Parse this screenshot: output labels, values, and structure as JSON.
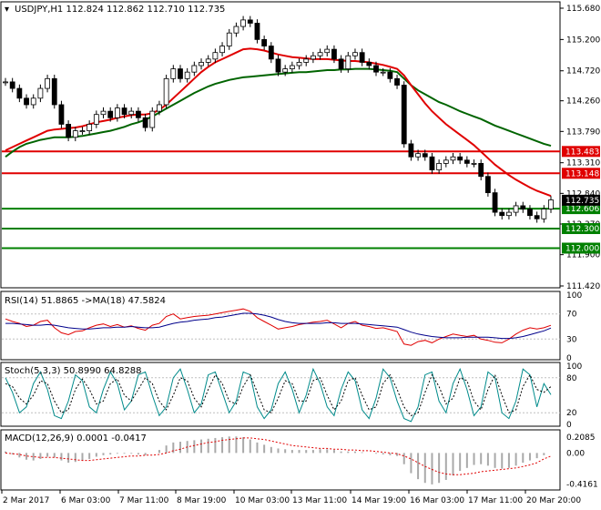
{
  "chart_data": [
    {
      "type": "candlestick",
      "panel": "price",
      "title": "USDJPY,H1  112.824 112.862 112.710 112.735",
      "symbol": "USDJPY",
      "timeframe": "H1",
      "ohlc_label": {
        "open": 112.824,
        "high": 112.862,
        "low": 112.71,
        "close": 112.735
      },
      "y_ticks": [
        "115.680",
        "115.200",
        "114.720",
        "114.260",
        "113.790",
        "113.310",
        "112.840",
        "112.370",
        "111.900",
        "111.420"
      ],
      "ylim": [
        111.42,
        115.75
      ],
      "horizontal_levels": [
        {
          "value": 113.483,
          "label": "113.483",
          "color": "#e00000"
        },
        {
          "value": 113.148,
          "label": "113.148",
          "color": "#e00000"
        },
        {
          "value": 112.606,
          "label": "112.606",
          "color": "#008000"
        },
        {
          "value": 112.3,
          "label": "112.300",
          "color": "#008000"
        },
        {
          "value": 112.0,
          "label": "112.000",
          "color": "#008000"
        }
      ],
      "current_price": {
        "value": 112.735,
        "label": "112.735"
      },
      "x_ticks": [
        "2 Mar 2017",
        "6 Mar 03:00",
        "7 Mar 11:00",
        "8 Mar 19:00",
        "10 Mar 03:00",
        "13 Mar 11:00",
        "14 Mar 19:00",
        "16 Mar 03:00",
        "17 Mar 11:00",
        "20 Mar 20:00"
      ],
      "series": [
        {
          "key": "price",
          "kind": "candles",
          "color": "#000000",
          "values": [
            114.55,
            114.45,
            114.3,
            114.2,
            114.3,
            114.45,
            114.6,
            114.2,
            113.9,
            113.7,
            113.8,
            113.8,
            113.9,
            114.05,
            114.1,
            114.0,
            114.15,
            114.05,
            114.1,
            114.0,
            113.85,
            114.1,
            114.2,
            114.6,
            114.75,
            114.6,
            114.7,
            114.8,
            114.85,
            114.9,
            115.0,
            115.1,
            115.3,
            115.4,
            115.5,
            115.45,
            115.2,
            115.1,
            114.9,
            114.7,
            114.75,
            114.8,
            114.85,
            114.9,
            114.95,
            115.0,
            115.05,
            114.9,
            114.75,
            114.95,
            115.0,
            114.85,
            114.8,
            114.7,
            114.7,
            114.6,
            114.5,
            113.6,
            113.4,
            113.45,
            113.4,
            113.2,
            113.3,
            113.35,
            113.4,
            113.35,
            113.3,
            113.3,
            113.1,
            112.85,
            112.55,
            112.5,
            112.55,
            112.65,
            112.6,
            112.5,
            112.45,
            112.6,
            112.74
          ]
        },
        {
          "key": "ma_slow",
          "kind": "line",
          "color": "#006400",
          "values": [
            113.4,
            113.48,
            113.55,
            113.6,
            113.63,
            113.66,
            113.68,
            113.7,
            113.7,
            113.7,
            113.71,
            113.72,
            113.74,
            113.76,
            113.78,
            113.8,
            113.83,
            113.86,
            113.9,
            113.93,
            113.97,
            114.02,
            114.08,
            114.14,
            114.2,
            114.26,
            114.32,
            114.38,
            114.43,
            114.48,
            114.52,
            114.55,
            114.58,
            114.6,
            114.62,
            114.63,
            114.64,
            114.65,
            114.66,
            114.67,
            114.68,
            114.69,
            114.7,
            114.7,
            114.71,
            114.72,
            114.73,
            114.73,
            114.74,
            114.74,
            114.75,
            114.75,
            114.75,
            114.74,
            114.73,
            114.72,
            114.7,
            114.6,
            114.5,
            114.42,
            114.36,
            114.3,
            114.24,
            114.2,
            114.15,
            114.1,
            114.06,
            114.02,
            113.98,
            113.93,
            113.88,
            113.84,
            113.8,
            113.76,
            113.72,
            113.68,
            113.64,
            113.6,
            113.57
          ]
        },
        {
          "key": "ma_mid",
          "kind": "line",
          "color": "#e00000",
          "values": [
            113.5,
            113.55,
            113.6,
            113.65,
            113.7,
            113.75,
            113.8,
            113.82,
            113.83,
            113.84,
            113.85,
            113.87,
            113.9,
            113.93,
            113.95,
            113.97,
            114.0,
            114.02,
            114.04,
            114.05,
            114.05,
            114.07,
            114.12,
            114.2,
            114.3,
            114.4,
            114.5,
            114.6,
            114.7,
            114.78,
            114.85,
            114.9,
            114.95,
            115.0,
            115.05,
            115.06,
            115.05,
            115.03,
            115.0,
            114.97,
            114.95,
            114.93,
            114.92,
            114.91,
            114.9,
            114.9,
            114.9,
            114.89,
            114.88,
            114.87,
            114.87,
            114.86,
            114.85,
            114.83,
            114.81,
            114.78,
            114.75,
            114.65,
            114.5,
            114.36,
            114.22,
            114.1,
            114.0,
            113.9,
            113.82,
            113.74,
            113.66,
            113.58,
            113.48,
            113.38,
            113.28,
            113.2,
            113.12,
            113.05,
            112.99,
            112.93,
            112.88,
            112.84,
            112.8
          ]
        }
      ]
    },
    {
      "type": "line",
      "panel": "rsi",
      "title": "RSI(14) 51.8865  ->MA(18) 47.5824",
      "y_ticks": [
        "100",
        "70",
        "30",
        "0"
      ],
      "ylim": [
        0,
        100
      ],
      "series": [
        {
          "key": "rsi",
          "kind": "line",
          "color": "#e00000",
          "values": [
            62,
            58,
            55,
            50,
            52,
            58,
            60,
            48,
            40,
            37,
            42,
            43,
            48,
            52,
            54,
            50,
            53,
            49,
            51,
            47,
            44,
            52,
            55,
            66,
            70,
            62,
            64,
            66,
            67,
            68,
            70,
            72,
            74,
            76,
            78,
            74,
            64,
            58,
            52,
            46,
            48,
            50,
            53,
            55,
            57,
            58,
            60,
            54,
            48,
            55,
            58,
            52,
            50,
            47,
            48,
            45,
            42,
            22,
            20,
            26,
            28,
            24,
            30,
            34,
            38,
            36,
            34,
            36,
            30,
            28,
            25,
            24,
            30,
            38,
            44,
            48,
            46,
            48,
            51.9
          ]
        },
        {
          "key": "rsi_ma",
          "kind": "line",
          "color": "#00008b",
          "values": [
            55,
            55,
            54,
            53,
            52,
            52,
            53,
            52,
            50,
            48,
            47,
            46,
            46,
            47,
            48,
            48,
            49,
            49,
            50,
            49,
            48,
            48,
            49,
            52,
            55,
            57,
            58,
            60,
            61,
            62,
            64,
            65,
            67,
            69,
            71,
            71,
            70,
            68,
            65,
            61,
            58,
            56,
            55,
            55,
            55,
            55,
            56,
            56,
            55,
            55,
            55,
            54,
            53,
            52,
            51,
            50,
            49,
            45,
            41,
            38,
            36,
            34,
            33,
            32,
            32,
            32,
            33,
            33,
            33,
            33,
            32,
            31,
            31,
            32,
            34,
            37,
            40,
            43,
            47.6
          ]
        }
      ]
    },
    {
      "type": "line",
      "panel": "stoch",
      "title": "Stoch(5,3,3) 50.8990 64.8288",
      "y_ticks": [
        "100",
        "80",
        "20",
        "0"
      ],
      "ylim": [
        0,
        100
      ],
      "series": [
        {
          "key": "stoch_k",
          "kind": "line",
          "color": "#008b8b",
          "values": [
            80,
            55,
            20,
            30,
            70,
            90,
            60,
            15,
            10,
            40,
            85,
            75,
            30,
            20,
            60,
            90,
            70,
            25,
            40,
            85,
            90,
            50,
            15,
            30,
            80,
            95,
            60,
            20,
            35,
            85,
            90,
            55,
            20,
            40,
            90,
            85,
            30,
            10,
            25,
            70,
            90,
            60,
            20,
            50,
            95,
            70,
            30,
            15,
            60,
            90,
            75,
            25,
            10,
            45,
            95,
            80,
            40,
            10,
            5,
            30,
            85,
            90,
            40,
            20,
            70,
            95,
            60,
            15,
            30,
            90,
            80,
            20,
            10,
            40,
            95,
            85,
            30,
            70,
            50.9
          ]
        },
        {
          "key": "stoch_d",
          "kind": "line",
          "color": "#000000",
          "values": [
            70,
            65,
            45,
            35,
            50,
            75,
            70,
            40,
            20,
            25,
            60,
            78,
            60,
            35,
            40,
            70,
            78,
            50,
            40,
            60,
            80,
            70,
            40,
            25,
            50,
            80,
            75,
            45,
            30,
            60,
            85,
            70,
            40,
            35,
            65,
            85,
            55,
            25,
            20,
            45,
            75,
            70,
            40,
            40,
            75,
            80,
            50,
            25,
            40,
            75,
            80,
            50,
            25,
            30,
            70,
            85,
            60,
            30,
            15,
            20,
            55,
            85,
            65,
            35,
            45,
            80,
            75,
            40,
            25,
            60,
            85,
            50,
            20,
            25,
            65,
            85,
            60,
            55,
            64.8
          ]
        }
      ]
    },
    {
      "type": "bar",
      "panel": "macd",
      "title": "MACD(12,26,9) 0.0001 -0.0417",
      "y_ticks": [
        "0.2085",
        "0.00",
        "-0.4161"
      ],
      "ylim": [
        -0.47,
        0.26
      ],
      "series": [
        {
          "key": "macd_hist",
          "kind": "bars",
          "color": "#a9a9a9",
          "values": [
            0.02,
            -0.02,
            -0.06,
            -0.09,
            -0.1,
            -0.08,
            -0.05,
            -0.06,
            -0.1,
            -0.13,
            -0.12,
            -0.1,
            -0.08,
            -0.05,
            -0.03,
            -0.02,
            -0.01,
            -0.01,
            -0.01,
            -0.02,
            -0.03,
            0.0,
            0.04,
            0.1,
            0.14,
            0.15,
            0.16,
            0.17,
            0.18,
            0.19,
            0.2,
            0.21,
            0.22,
            0.22,
            0.21,
            0.18,
            0.14,
            0.11,
            0.08,
            0.06,
            0.05,
            0.04,
            0.04,
            0.04,
            0.04,
            0.05,
            0.05,
            0.04,
            0.02,
            0.02,
            0.02,
            0.01,
            0.0,
            -0.01,
            -0.02,
            -0.03,
            -0.04,
            -0.15,
            -0.27,
            -0.35,
            -0.4,
            -0.42,
            -0.4,
            -0.36,
            -0.3,
            -0.24,
            -0.2,
            -0.16,
            -0.15,
            -0.17,
            -0.2,
            -0.21,
            -0.2,
            -0.17,
            -0.13,
            -0.1,
            -0.07,
            -0.03,
            0.0001
          ]
        },
        {
          "key": "macd_signal",
          "kind": "line",
          "color": "#e00000",
          "values": [
            0.0,
            -0.01,
            -0.02,
            -0.04,
            -0.05,
            -0.06,
            -0.06,
            -0.06,
            -0.07,
            -0.08,
            -0.09,
            -0.1,
            -0.1,
            -0.09,
            -0.08,
            -0.07,
            -0.06,
            -0.05,
            -0.04,
            -0.04,
            -0.03,
            -0.03,
            -0.02,
            0.0,
            0.03,
            0.05,
            0.08,
            0.1,
            0.12,
            0.14,
            0.15,
            0.17,
            0.18,
            0.19,
            0.2,
            0.2,
            0.19,
            0.18,
            0.16,
            0.14,
            0.12,
            0.1,
            0.09,
            0.08,
            0.07,
            0.06,
            0.06,
            0.05,
            0.05,
            0.04,
            0.04,
            0.03,
            0.03,
            0.02,
            0.01,
            0.0,
            -0.01,
            -0.04,
            -0.08,
            -0.13,
            -0.18,
            -0.22,
            -0.26,
            -0.28,
            -0.29,
            -0.29,
            -0.28,
            -0.27,
            -0.25,
            -0.24,
            -0.23,
            -0.22,
            -0.21,
            -0.2,
            -0.18,
            -0.16,
            -0.13,
            -0.08,
            -0.0417
          ]
        }
      ]
    }
  ]
}
